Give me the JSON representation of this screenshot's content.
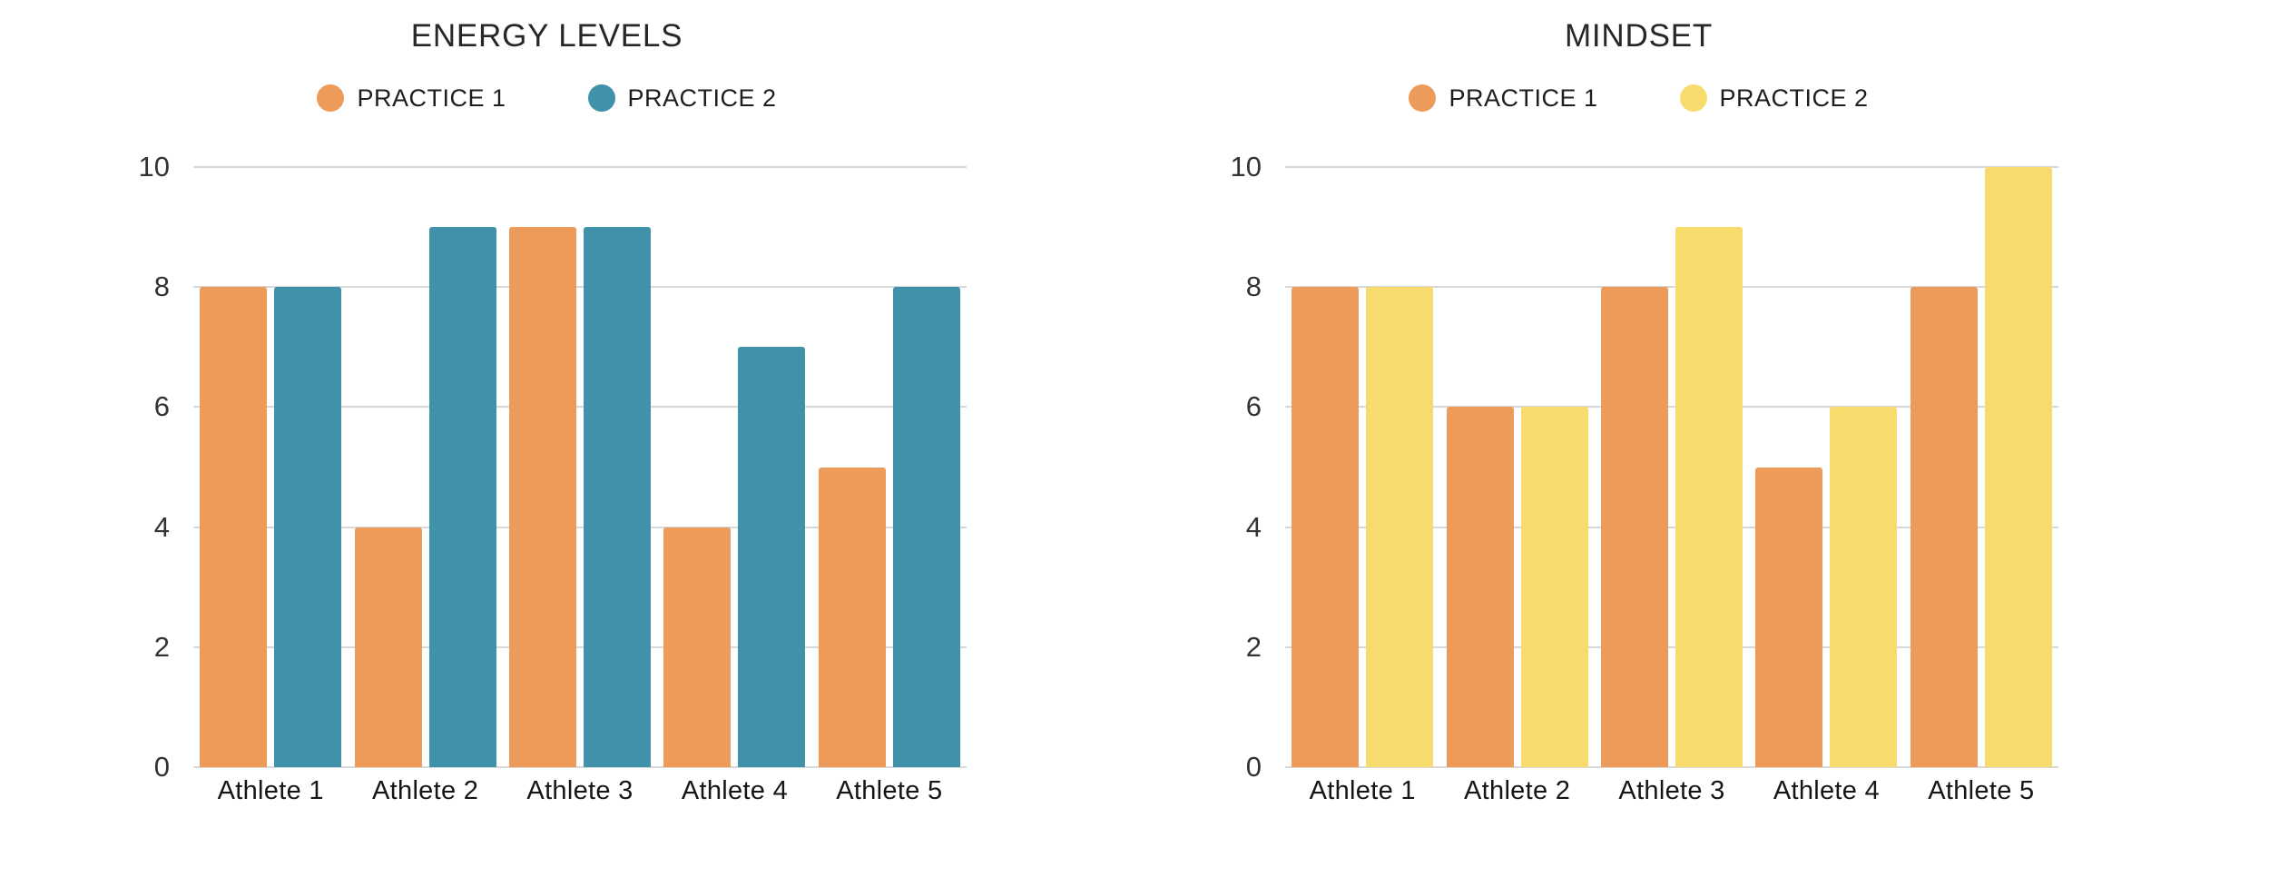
{
  "colors": {
    "background": "#FFFFFF",
    "gridline": "#D8D8D8",
    "title_text": "#272727",
    "tick_text": "#333333",
    "category_text": "#161616",
    "practice1_orange": "#EC9B5B",
    "practice2_teal": "#3F92A9",
    "practice2_yellow": "#F8DB6D"
  },
  "chart_data": [
    {
      "type": "bar",
      "title": "ENERGY LEVELS",
      "categories": [
        "Athlete 1",
        "Athlete 2",
        "Athlete 3",
        "Athlete 4",
        "Athlete 5"
      ],
      "series": [
        {
          "name": "PRACTICE 1",
          "color": "#EC9B5B",
          "values": [
            8,
            4,
            9,
            4,
            5
          ]
        },
        {
          "name": "PRACTICE 2",
          "color": "#3F92A9",
          "values": [
            8,
            9,
            9,
            7,
            8
          ]
        }
      ],
      "xlabel": "",
      "ylabel": "",
      "ylim": [
        0,
        10
      ],
      "yticks": [
        0,
        2,
        4,
        6,
        8,
        10
      ],
      "grid": true,
      "legend_position": "top"
    },
    {
      "type": "bar",
      "title": "MINDSET",
      "categories": [
        "Athlete 1",
        "Athlete 2",
        "Athlete 3",
        "Athlete 4",
        "Athlete 5"
      ],
      "series": [
        {
          "name": "PRACTICE 1",
          "color": "#EC9B5B",
          "values": [
            8,
            6,
            8,
            5,
            8
          ]
        },
        {
          "name": "PRACTICE 2",
          "color": "#F8DB6D",
          "values": [
            8,
            6,
            9,
            6,
            10
          ]
        }
      ],
      "xlabel": "",
      "ylabel": "",
      "ylim": [
        0,
        10
      ],
      "yticks": [
        0,
        2,
        4,
        6,
        8,
        10
      ],
      "grid": true,
      "legend_position": "top"
    }
  ]
}
